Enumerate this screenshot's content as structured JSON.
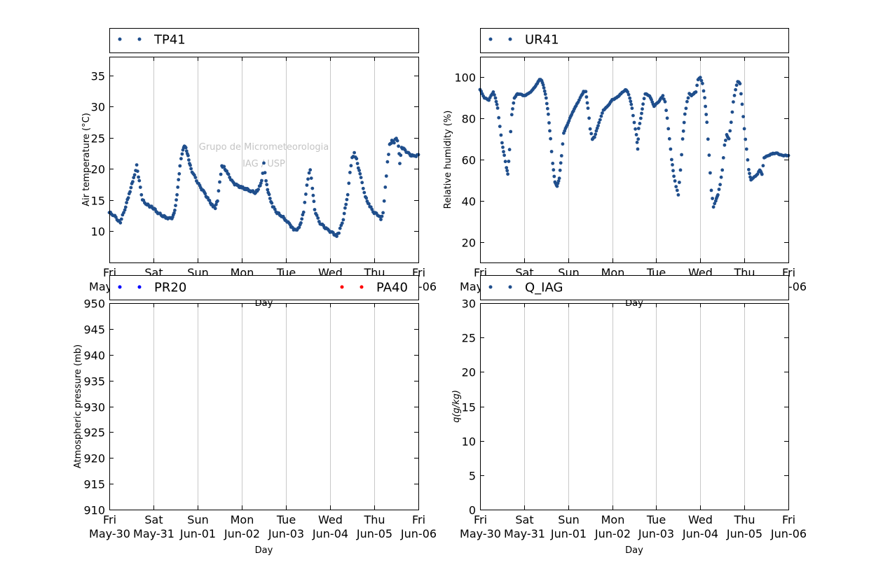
{
  "chart_data": [
    {
      "type": "scatter",
      "legend": [
        "TP41"
      ],
      "legend_placement": "above",
      "xlabel": "Day",
      "ylabel": "Air temperature (°C)",
      "ylim": [
        5,
        38
      ],
      "yticks": [
        "10",
        "15",
        "20",
        "25",
        "30",
        "35"
      ],
      "xlim": [
        0,
        7
      ],
      "xtick_days": [
        "Fri",
        "Sat",
        "Sun",
        "Mon",
        "Tue",
        "Wed",
        "Thu",
        "Fri"
      ],
      "xtick_dates": [
        "May-30",
        "May-31",
        "Jun-01",
        "Jun-02",
        "Jun-03",
        "Jun-04",
        "Jun-05",
        "Jun-06"
      ],
      "grid": "vertical",
      "watermark": [
        "Grupo de Micrometeorologia",
        "IAG / USP"
      ],
      "series": [
        {
          "name": "TP41",
          "color": "#1f4e8c",
          "points": [
            [
              0,
              13
            ],
            [
              0.1,
              12.6
            ],
            [
              0.2,
              11.8
            ],
            [
              0.25,
              11.5
            ],
            [
              0.35,
              13.5
            ],
            [
              0.45,
              16
            ],
            [
              0.55,
              18.5
            ],
            [
              0.62,
              20.5
            ],
            [
              0.68,
              18
            ],
            [
              0.75,
              15
            ],
            [
              0.85,
              14.3
            ],
            [
              1,
              13.7
            ],
            [
              1.1,
              13
            ],
            [
              1.2,
              12.5
            ],
            [
              1.3,
              12.2
            ],
            [
              1.4,
              12
            ],
            [
              1.45,
              12.5
            ],
            [
              1.5,
              14
            ],
            [
              1.55,
              17
            ],
            [
              1.6,
              20.5
            ],
            [
              1.65,
              22.5
            ],
            [
              1.7,
              23.8
            ],
            [
              1.75,
              23
            ],
            [
              1.8,
              21.5
            ],
            [
              1.85,
              20
            ],
            [
              1.95,
              18.5
            ],
            [
              2.05,
              17.2
            ],
            [
              2.15,
              16.2
            ],
            [
              2.25,
              15
            ],
            [
              2.35,
              14
            ],
            [
              2.4,
              13.8
            ],
            [
              2.45,
              15
            ],
            [
              2.5,
              18
            ],
            [
              2.55,
              20.5
            ],
            [
              2.6,
              20.3
            ],
            [
              2.7,
              19
            ],
            [
              2.8,
              17.8
            ],
            [
              2.9,
              17.3
            ],
            [
              3,
              17
            ],
            [
              3.1,
              16.8
            ],
            [
              3.2,
              16.5
            ],
            [
              3.3,
              16.2
            ],
            [
              3.35,
              16.5
            ],
            [
              3.4,
              17.2
            ],
            [
              3.45,
              18
            ],
            [
              3.5,
              20.8
            ],
            [
              3.55,
              18
            ],
            [
              3.6,
              16.2
            ],
            [
              3.7,
              14
            ],
            [
              3.8,
              13
            ],
            [
              3.9,
              12.5
            ],
            [
              4,
              11.8
            ],
            [
              4.1,
              11
            ],
            [
              4.15,
              10.5
            ],
            [
              4.2,
              10.2
            ],
            [
              4.3,
              10.5
            ],
            [
              4.4,
              13
            ],
            [
              4.45,
              16
            ],
            [
              4.5,
              18.5
            ],
            [
              4.55,
              20
            ],
            [
              4.6,
              17
            ],
            [
              4.65,
              13.5
            ],
            [
              4.75,
              11.5
            ],
            [
              4.85,
              10.8
            ],
            [
              4.95,
              10.2
            ],
            [
              5.05,
              9.8
            ],
            [
              5.15,
              9.2
            ],
            [
              5.2,
              9.8
            ],
            [
              5.3,
              12
            ],
            [
              5.4,
              16
            ],
            [
              5.45,
              19.5
            ],
            [
              5.5,
              21.8
            ],
            [
              5.55,
              22.5
            ],
            [
              5.6,
              21.5
            ],
            [
              5.7,
              18.5
            ],
            [
              5.8,
              15.5
            ],
            [
              5.9,
              14
            ],
            [
              6,
              13
            ],
            [
              6.1,
              12.6
            ],
            [
              6.15,
              12
            ],
            [
              6.2,
              13
            ],
            [
              6.25,
              17
            ],
            [
              6.3,
              21
            ],
            [
              6.35,
              23.8
            ],
            [
              6.4,
              24.5
            ],
            [
              6.45,
              24.2
            ],
            [
              6.5,
              25
            ],
            [
              6.55,
              23.8
            ],
            [
              6.58,
              21
            ],
            [
              6.62,
              23.5
            ],
            [
              6.7,
              23
            ],
            [
              6.8,
              22.3
            ],
            [
              6.9,
              22
            ],
            [
              7,
              22.3
            ]
          ]
        }
      ]
    },
    {
      "type": "scatter",
      "legend": [
        "UR41"
      ],
      "legend_placement": "above",
      "xlabel": "Day",
      "ylabel": "Relative humidity (%)",
      "ylim": [
        10,
        110
      ],
      "yticks": [
        "20",
        "40",
        "60",
        "80",
        "100"
      ],
      "xlim": [
        0,
        7
      ],
      "xtick_days": [
        "Fri",
        "Sat",
        "Sun",
        "Mon",
        "Tue",
        "Wed",
        "Thu",
        "Fri"
      ],
      "xtick_dates": [
        "May-30",
        "May-31",
        "Jun-01",
        "Jun-02",
        "Jun-03",
        "Jun-04",
        "Jun-05",
        "Jun-06"
      ],
      "grid": "vertical",
      "series": [
        {
          "name": "UR41",
          "color": "#1f4e8c",
          "points": [
            [
              0,
              94
            ],
            [
              0.1,
              90
            ],
            [
              0.2,
              89
            ],
            [
              0.3,
              93
            ],
            [
              0.35,
              90
            ],
            [
              0.4,
              85
            ],
            [
              0.45,
              76
            ],
            [
              0.5,
              68
            ],
            [
              0.55,
              62
            ],
            [
              0.6,
              56
            ],
            [
              0.63,
              53
            ],
            [
              0.67,
              65
            ],
            [
              0.72,
              82
            ],
            [
              0.78,
              90
            ],
            [
              0.85,
              92
            ],
            [
              0.95,
              91.5
            ],
            [
              1,
              91
            ],
            [
              1.1,
              92
            ],
            [
              1.2,
              94
            ],
            [
              1.3,
              97
            ],
            [
              1.35,
              99
            ],
            [
              1.4,
              98.5
            ],
            [
              1.45,
              95
            ],
            [
              1.5,
              90
            ],
            [
              1.55,
              82
            ],
            [
              1.6,
              70
            ],
            [
              1.65,
              58
            ],
            [
              1.7,
              49
            ],
            [
              1.75,
              47
            ],
            [
              1.8,
              51
            ],
            [
              1.85,
              62
            ],
            [
              1.9,
              73
            ],
            [
              2,
              78
            ],
            [
              2.1,
              83
            ],
            [
              2.2,
              87
            ],
            [
              2.3,
              91
            ],
            [
              2.35,
              93
            ],
            [
              2.4,
              93
            ],
            [
              2.45,
              85
            ],
            [
              2.5,
              75
            ],
            [
              2.55,
              70
            ],
            [
              2.6,
              71
            ],
            [
              2.7,
              78
            ],
            [
              2.8,
              84
            ],
            [
              2.9,
              86
            ],
            [
              3,
              89
            ],
            [
              3.1,
              90
            ],
            [
              3.2,
              92
            ],
            [
              3.3,
              94
            ],
            [
              3.35,
              93
            ],
            [
              3.4,
              90
            ],
            [
              3.45,
              85
            ],
            [
              3.5,
              78
            ],
            [
              3.55,
              72
            ],
            [
              3.58,
              65
            ],
            [
              3.6,
              75
            ],
            [
              3.65,
              80
            ],
            [
              3.7,
              87
            ],
            [
              3.75,
              92
            ],
            [
              3.85,
              91
            ],
            [
              3.95,
              86
            ],
            [
              4.05,
              88
            ],
            [
              4.15,
              91
            ],
            [
              4.2,
              88
            ],
            [
              4.25,
              80
            ],
            [
              4.3,
              70
            ],
            [
              4.35,
              60
            ],
            [
              4.4,
              52
            ],
            [
              4.45,
              47
            ],
            [
              4.5,
              43
            ],
            [
              4.55,
              55
            ],
            [
              4.6,
              70
            ],
            [
              4.65,
              82
            ],
            [
              4.7,
              88
            ],
            [
              4.75,
              92
            ],
            [
              4.8,
              91
            ],
            [
              4.85,
              92
            ],
            [
              4.9,
              93
            ],
            [
              4.95,
              99
            ],
            [
              5,
              100
            ],
            [
              5.05,
              97
            ],
            [
              5.1,
              90
            ],
            [
              5.15,
              78
            ],
            [
              5.2,
              62
            ],
            [
              5.25,
              45
            ],
            [
              5.3,
              37
            ],
            [
              5.35,
              40
            ],
            [
              5.4,
              43
            ],
            [
              5.45,
              48
            ],
            [
              5.5,
              55
            ],
            [
              5.55,
              67
            ],
            [
              5.6,
              72
            ],
            [
              5.65,
              70
            ],
            [
              5.7,
              78
            ],
            [
              5.75,
              88
            ],
            [
              5.8,
              94
            ],
            [
              5.85,
              98
            ],
            [
              5.9,
              97
            ],
            [
              5.95,
              87
            ],
            [
              6,
              75
            ],
            [
              6.05,
              65
            ],
            [
              6.1,
              55
            ],
            [
              6.15,
              50
            ],
            [
              6.2,
              51
            ],
            [
              6.3,
              53
            ],
            [
              6.35,
              55
            ],
            [
              6.4,
              53
            ],
            [
              6.45,
              61
            ],
            [
              6.55,
              62
            ],
            [
              6.65,
              63
            ],
            [
              6.75,
              63
            ],
            [
              6.85,
              62
            ],
            [
              7,
              62
            ]
          ]
        }
      ]
    },
    {
      "type": "scatter",
      "legend": [
        "PR20",
        "PA40"
      ],
      "legend_placement": "above",
      "xlabel": "Day",
      "ylabel": "Atmospheric pressure (mb)",
      "ylim": [
        910,
        950
      ],
      "yticks": [
        "910",
        "915",
        "920",
        "925",
        "930",
        "935",
        "940",
        "945",
        "950"
      ],
      "xlim": [
        0,
        7
      ],
      "xtick_days": [
        "Fri",
        "Sat",
        "Sun",
        "Mon",
        "Tue",
        "Wed",
        "Thu",
        "Fri"
      ],
      "xtick_dates": [
        "May-30",
        "May-31",
        "Jun-01",
        "Jun-02",
        "Jun-03",
        "Jun-04",
        "Jun-05",
        "Jun-06"
      ],
      "grid": "vertical",
      "series": [
        {
          "name": "PR20",
          "color": "#0000ff",
          "points": []
        },
        {
          "name": "PA40",
          "color": "#ff0000",
          "points": []
        }
      ]
    },
    {
      "type": "scatter",
      "legend": [
        "Q_IAG"
      ],
      "legend_placement": "above",
      "xlabel": "Day",
      "ylabel": "q(g/kg)",
      "ylim": [
        0,
        30
      ],
      "yticks": [
        "0",
        "5",
        "10",
        "15",
        "20",
        "25",
        "30"
      ],
      "xlim": [
        0,
        7
      ],
      "xtick_days": [
        "Fri",
        "Sat",
        "Sun",
        "Mon",
        "Tue",
        "Wed",
        "Thu",
        "Fri"
      ],
      "xtick_dates": [
        "May-30",
        "May-31",
        "Jun-01",
        "Jun-02",
        "Jun-03",
        "Jun-04",
        "Jun-05",
        "Jun-06"
      ],
      "grid": "vertical",
      "series": [
        {
          "name": "Q_IAG",
          "color": "#1f4e8c",
          "points": []
        }
      ]
    }
  ]
}
